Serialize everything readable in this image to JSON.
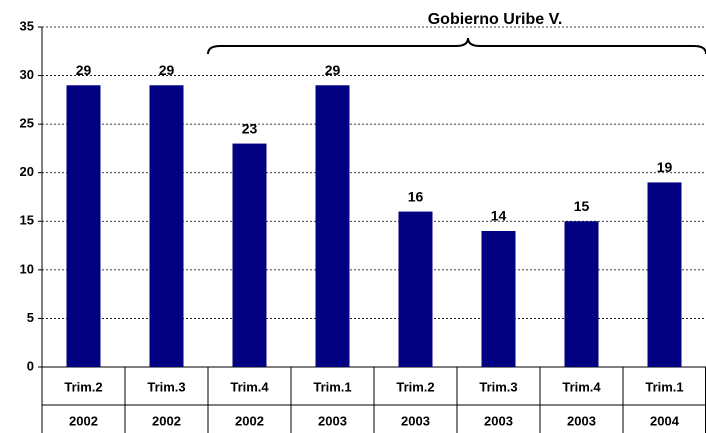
{
  "chart_data": {
    "type": "bar",
    "annotation": "Gobierno Uribe V.",
    "categories": [
      "Trim.2",
      "Trim.3",
      "Trim.4",
      "Trim.1",
      "Trim.2",
      "Trim.3",
      "Trim.4",
      "Trim.1"
    ],
    "years": [
      "2002",
      "2002",
      "2002",
      "2003",
      "2003",
      "2003",
      "2003",
      "2004"
    ],
    "values": [
      29,
      29,
      23,
      29,
      16,
      14,
      15,
      19
    ],
    "color": "#000080",
    "ylim": [
      0,
      35
    ],
    "yticks": [
      0,
      5,
      10,
      15,
      20,
      25,
      30,
      35
    ],
    "grid": true
  }
}
